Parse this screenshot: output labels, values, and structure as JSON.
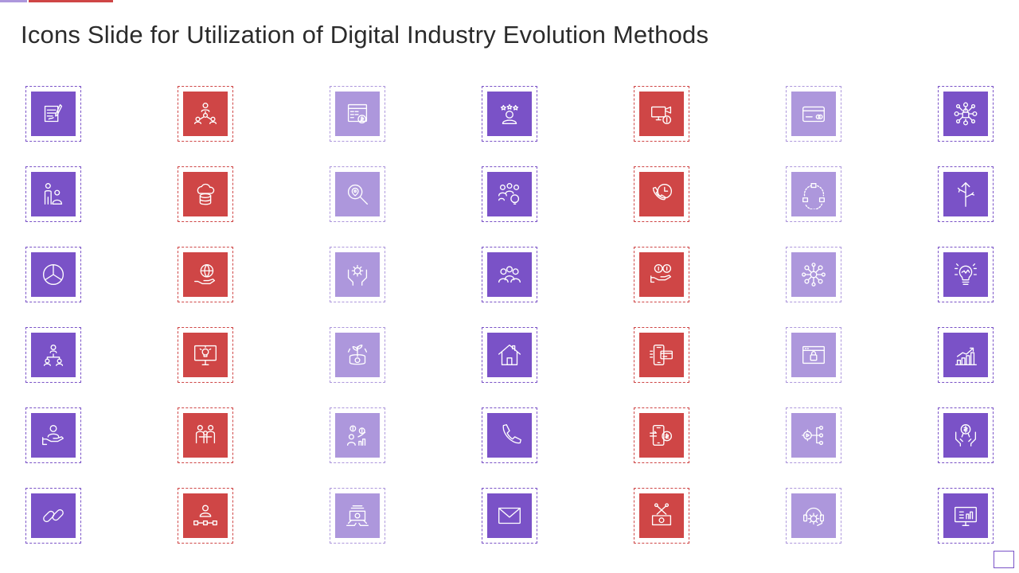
{
  "slide": {
    "title": "Icons Slide for Utilization of Digital Industry Evolution Methods"
  },
  "colors": {
    "purple": "#7a52c7",
    "red": "#cf4646",
    "lavender": "#ad97dc",
    "title": "#2b2b2b",
    "background": "#ffffff"
  },
  "icons": [
    [
      "document-edit-icon",
      "team-network-icon",
      "calculator-dollar-icon",
      "customer-rating-icon",
      "computer-security-camera-icon",
      "credit-card-icon",
      "network-lock-icon"
    ],
    [
      "people-presentation-icon",
      "cloud-database-icon",
      "location-search-icon",
      "team-idea-icon",
      "support-call-clock-icon",
      "process-cycle-icon",
      "direction-arrows-icon"
    ],
    [
      "pie-chart-icon",
      "global-hand-icon",
      "gear-hands-icon",
      "group-people-icon",
      "dollar-hand-icon",
      "hub-network-icon",
      "lightbulb-brain-icon"
    ],
    [
      "organization-chart-icon",
      "monitor-idea-icon",
      "money-plant-icon",
      "smart-home-icon",
      "mobile-payment-icon",
      "browser-lock-icon",
      "growth-bar-chart-icon"
    ],
    [
      "user-hand-icon",
      "team-meeting-icon",
      "financial-growth-icon",
      "phone-call-icon",
      "mobile-money-transfer-icon",
      "video-gear-network-icon",
      "dollar-award-hands-icon"
    ],
    [
      "chain-link-icon",
      "user-workflow-icon",
      "cash-stack-icon",
      "mail-envelope-icon",
      "money-tools-icon",
      "gear-headset-icon",
      "monitor-presentation-icon"
    ]
  ]
}
